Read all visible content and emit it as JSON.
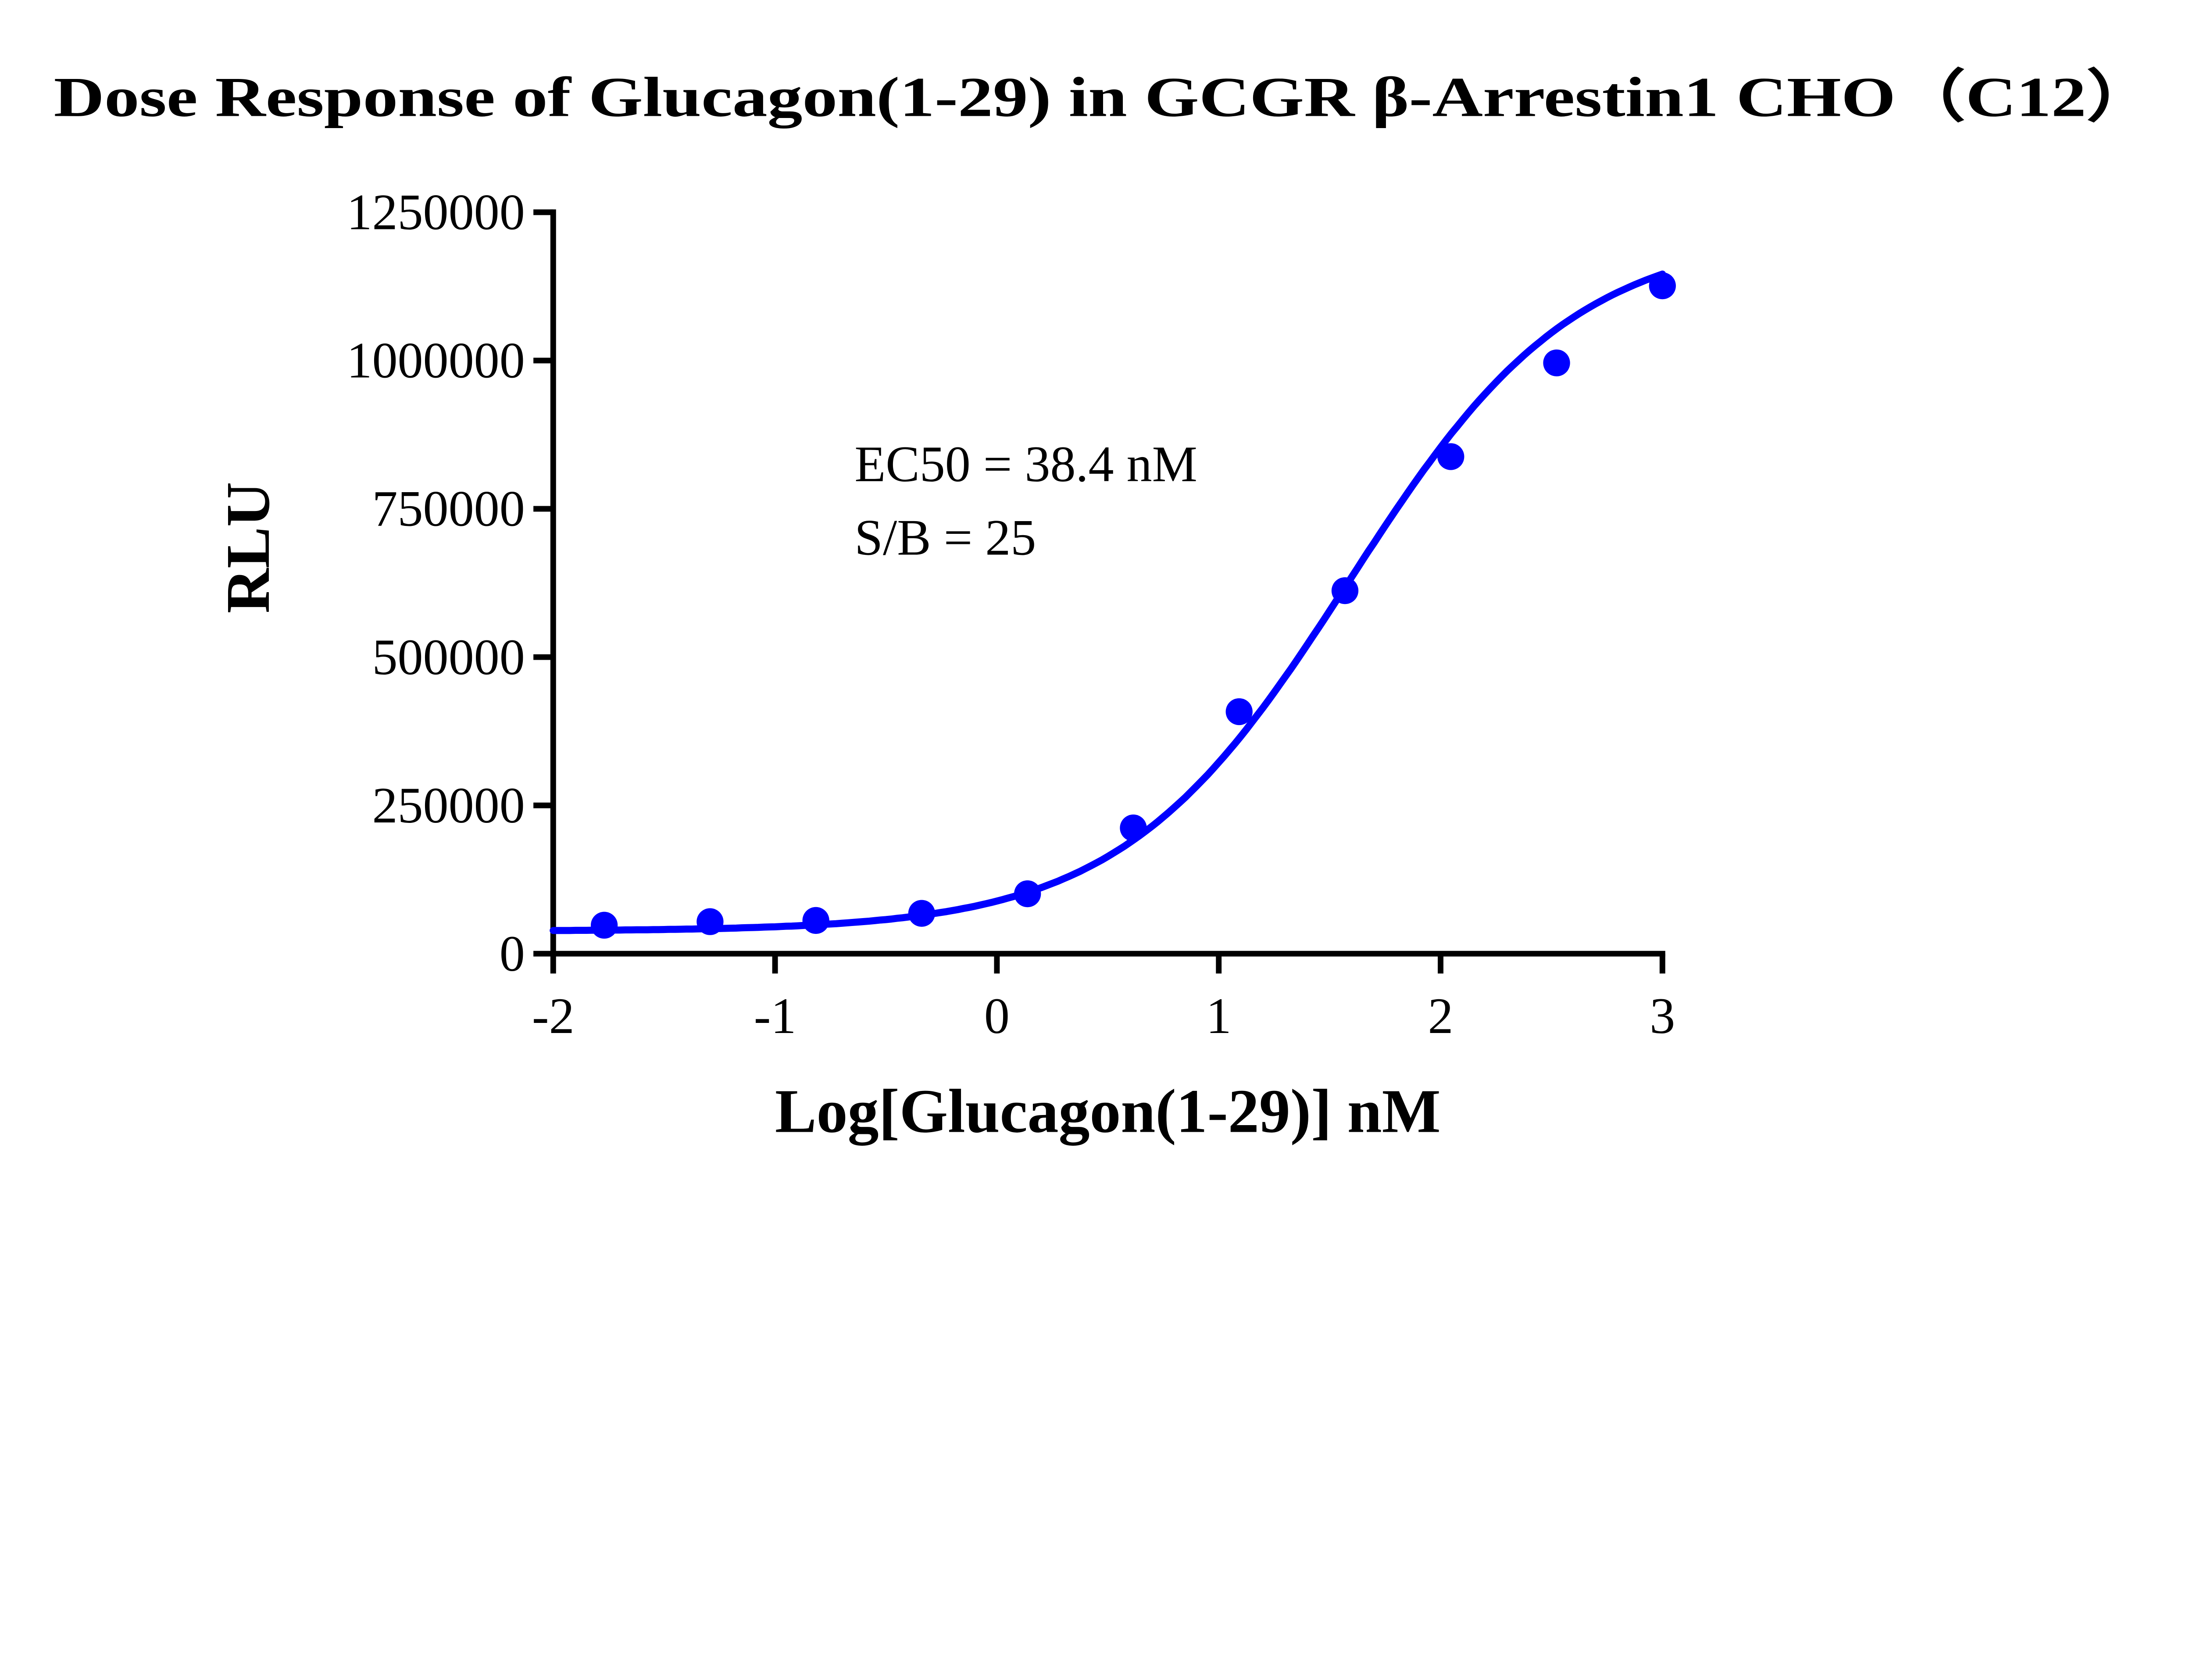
{
  "chart_data": {
    "type": "scatter",
    "title": "Dose Response of Glucagon(1-29) in GCGR β-Arrestin1 CHO（C12）",
    "xlabel": "Log[Glucagon(1-29)] nM",
    "ylabel": "RLU",
    "xlim": [
      -2,
      3
    ],
    "ylim": [
      0,
      1250000
    ],
    "xticks": [
      "-2",
      "-1",
      "0",
      "1",
      "2",
      "3"
    ],
    "yticks": [
      "0",
      "250000",
      "500000",
      "750000",
      "1000000",
      "1250000"
    ],
    "grid": false,
    "legend": "none",
    "color": "#0000ff",
    "series": [
      {
        "x": [
          -1.77,
          -1.293,
          -0.816,
          -0.339,
          0.138,
          0.615,
          1.092,
          1.569,
          2.046,
          2.523,
          3.0
        ],
        "y": [
          48000,
          54000,
          56000,
          68000,
          101000,
          212000,
          408000,
          612000,
          838000,
          996000,
          1126000
        ],
        "fit": "four-parameter logistic curve"
      }
    ],
    "annotations": [
      "EC50 = 38.4 nM",
      "S/B = 25"
    ]
  }
}
